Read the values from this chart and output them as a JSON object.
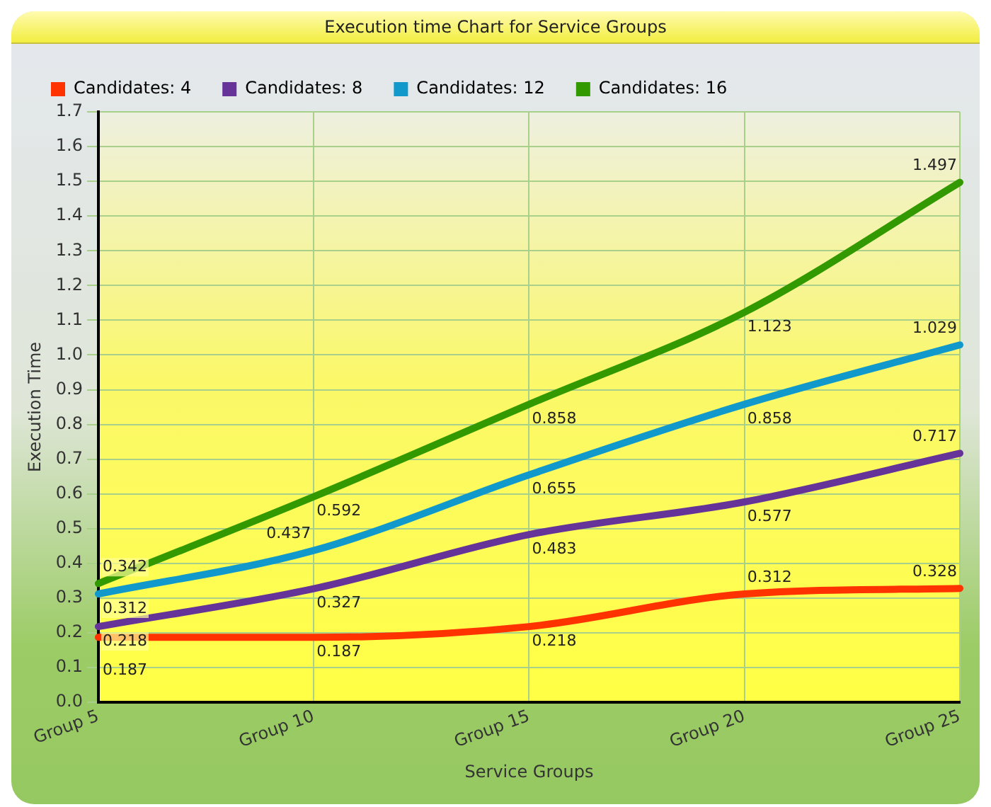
{
  "chart_data": {
    "type": "line",
    "title": "Execution time Chart for Service Groups",
    "xlabel": "Service Groups",
    "ylabel": "Execution Time",
    "categories": [
      "Group 5",
      "Group 10",
      "Group 15",
      "Group 20",
      "Group 25"
    ],
    "series": [
      {
        "name": "Candidates: 4",
        "color": "#ff3300",
        "values": [
          0.187,
          0.187,
          0.218,
          0.312,
          0.328
        ]
      },
      {
        "name": "Candidates: 8",
        "color": "#663399",
        "values": [
          0.218,
          0.327,
          0.483,
          0.577,
          0.717
        ]
      },
      {
        "name": "Candidates: 12",
        "color": "#1199cc",
        "values": [
          0.312,
          0.437,
          0.655,
          0.858,
          1.029
        ]
      },
      {
        "name": "Candidates: 16",
        "color": "#339900",
        "values": [
          0.342,
          0.592,
          0.858,
          1.123,
          1.497
        ]
      }
    ],
    "ylim": [
      0,
      1.7
    ],
    "yticks": [
      {
        "value": 0,
        "label": "0.0"
      },
      0.1,
      0.2,
      0.3,
      0.4,
      0.5,
      0.6,
      0.7,
      0.8,
      0.9,
      {
        "value": 1,
        "label": "1.0"
      },
      1.1,
      1.2,
      1.3,
      1.4,
      1.5,
      1.6,
      1.7
    ],
    "grid": true,
    "legend": "top left",
    "marker": "none",
    "line_style": "solid",
    "data_labels": true
  }
}
